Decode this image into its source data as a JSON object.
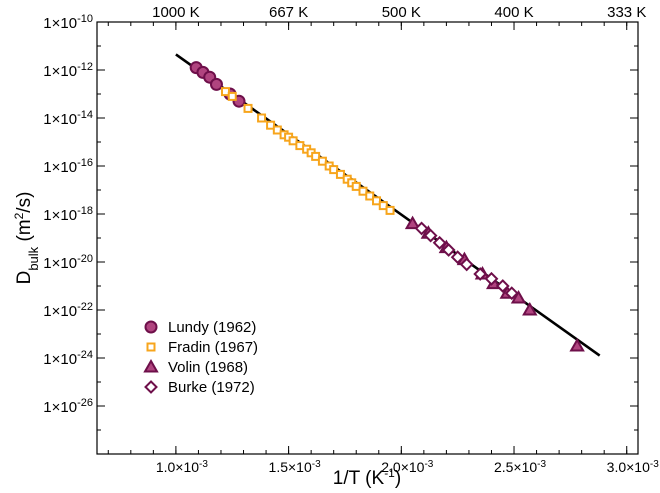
{
  "chart_data": {
    "type": "scatter",
    "xlabel": "1/T (K",
    "xlabel_sup": "-1",
    "xlabel_close": ")",
    "ylabel": "D",
    "ylabel_sub": "bulk",
    "ylabel_unit_open": " (m",
    "ylabel_unit_sup": "2",
    "ylabel_unit_close": "/s)",
    "x_axis": {
      "min": 0.00065,
      "max": 0.00305,
      "scale": "linear"
    },
    "y_axis": {
      "min": 1e-28,
      "max": 1e-10,
      "scale": "log10"
    },
    "x_ticks": [
      {
        "value": 0.001,
        "label": "1.0×10",
        "exp": "-3"
      },
      {
        "value": 0.0015,
        "label": "1.5×10",
        "exp": "-3"
      },
      {
        "value": 0.002,
        "label": "2.0×10",
        "exp": "-3"
      },
      {
        "value": 0.0025,
        "label": "2.5×10",
        "exp": "-3"
      },
      {
        "value": 0.003,
        "label": "3.0×10",
        "exp": "-3"
      }
    ],
    "y_ticks": [
      {
        "value": -10,
        "label": "1×10",
        "exp": "-10"
      },
      {
        "value": -12,
        "label": "1×10",
        "exp": "-12"
      },
      {
        "value": -14,
        "label": "1×10",
        "exp": "-14"
      },
      {
        "value": -16,
        "label": "1×10",
        "exp": "-16"
      },
      {
        "value": -18,
        "label": "1×10",
        "exp": "-18"
      },
      {
        "value": -20,
        "label": "1×10",
        "exp": "-20"
      },
      {
        "value": -22,
        "label": "1×10",
        "exp": "-22"
      },
      {
        "value": -24,
        "label": "1×10",
        "exp": "-24"
      },
      {
        "value": -26,
        "label": "1×10",
        "exp": "-26"
      }
    ],
    "top_axis_ticks": [
      {
        "value": 0.001,
        "label": "1000 K"
      },
      {
        "value": 0.0015,
        "label": "667 K"
      },
      {
        "value": 0.002,
        "label": "500 K"
      },
      {
        "value": 0.0025,
        "label": "400 K"
      },
      {
        "value": 0.003,
        "label": "333 K"
      }
    ],
    "fit_line": {
      "x": [
        0.001,
        0.00288
      ],
      "log10_y": [
        -11.35,
        -23.9
      ],
      "color": "#000000"
    },
    "series": [
      {
        "name": "Lundy (1962)",
        "marker": "circle",
        "fill": "#b0447f",
        "stroke": "#6e0f4a",
        "x": [
          0.00109,
          0.00112,
          0.00115,
          0.00118,
          0.00124,
          0.00128
        ],
        "log10_y": [
          -11.9,
          -12.1,
          -12.3,
          -12.6,
          -13.0,
          -13.3
        ]
      },
      {
        "name": "Fradin (1967)",
        "marker": "square",
        "fill": "#ffffff",
        "stroke": "#f7a51c",
        "x": [
          0.00122,
          0.00125,
          0.00132,
          0.00138,
          0.00142,
          0.00145,
          0.00148,
          0.0015,
          0.00152,
          0.00155,
          0.00158,
          0.0016,
          0.00162,
          0.00165,
          0.00168,
          0.0017,
          0.00173,
          0.00176,
          0.00178,
          0.0018,
          0.00183,
          0.00186,
          0.00189,
          0.00192,
          0.00195
        ],
        "log10_y": [
          -12.9,
          -13.1,
          -13.6,
          -14.0,
          -14.3,
          -14.5,
          -14.7,
          -14.8,
          -14.95,
          -15.15,
          -15.3,
          -15.45,
          -15.6,
          -15.8,
          -16.0,
          -16.15,
          -16.35,
          -16.55,
          -16.7,
          -16.85,
          -17.05,
          -17.25,
          -17.45,
          -17.65,
          -17.85
        ]
      },
      {
        "name": "Volin (1968)",
        "marker": "triangle",
        "fill": "#b0447f",
        "stroke": "#6e0f4a",
        "x": [
          0.00205,
          0.00212,
          0.0022,
          0.00228,
          0.00236,
          0.00241,
          0.00247,
          0.00252,
          0.00257,
          0.00278
        ],
        "log10_y": [
          -18.4,
          -18.8,
          -19.4,
          -19.9,
          -20.5,
          -20.9,
          -21.3,
          -21.5,
          -22.0,
          -23.5
        ]
      },
      {
        "name": "Burke (1972)",
        "marker": "diamond",
        "fill": "#ffffff",
        "stroke": "#6e0f4a",
        "x": [
          0.00209,
          0.00213,
          0.00217,
          0.00221,
          0.00225,
          0.00229,
          0.00235,
          0.0024,
          0.00245,
          0.00249
        ],
        "log10_y": [
          -18.6,
          -18.9,
          -19.2,
          -19.5,
          -19.8,
          -20.1,
          -20.5,
          -20.7,
          -21.0,
          -21.3
        ]
      }
    ],
    "legend_position": "bottom-left",
    "grid": false
  }
}
